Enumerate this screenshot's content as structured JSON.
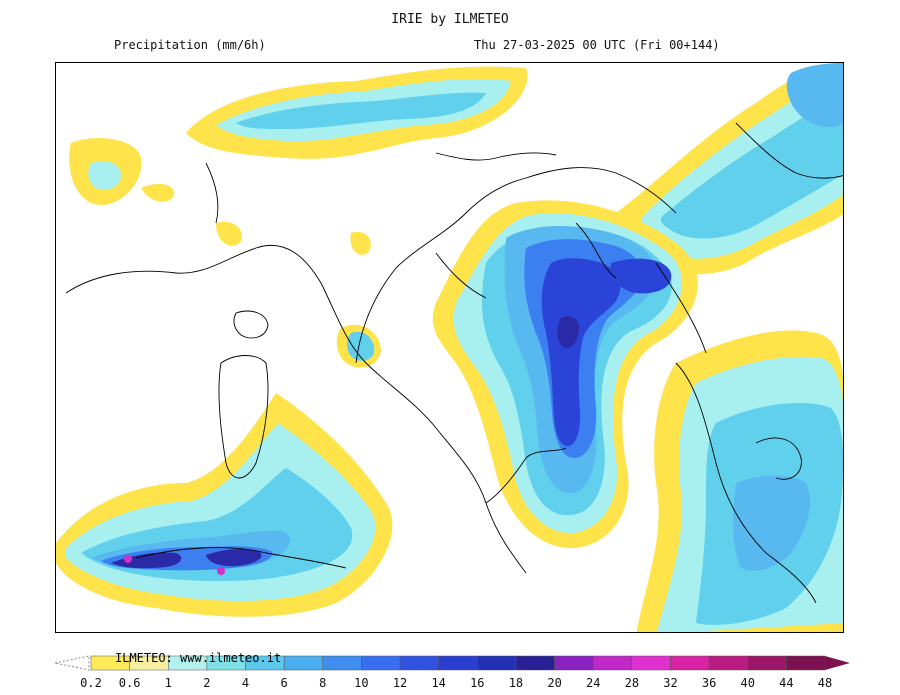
{
  "header": {
    "title": "IRIE by ILMETEO",
    "variable": "Precipitation (mm/6h)",
    "valid_time": "Thu 27-03-2025 00 UTC (Fri 00+144)"
  },
  "colorbar": {
    "credit": "ILMETEO: www.ilmeteo.it",
    "ticks": [
      "0.2",
      "0.6",
      "1",
      "2",
      "4",
      "6",
      "8",
      "10",
      "12",
      "14",
      "16",
      "18",
      "20",
      "24",
      "28",
      "32",
      "36",
      "40",
      "44",
      "48"
    ],
    "colors": [
      "#ffeb59",
      "#f6f0a0",
      "#b4f0ee",
      "#7fe0e8",
      "#5bc8ec",
      "#4aaef0",
      "#3f8ef0",
      "#3a6ef0",
      "#3152e0",
      "#2a3ed0",
      "#2230b4",
      "#2a2096",
      "#8a22c0",
      "#c028c8",
      "#e030d0",
      "#d824a4",
      "#b81c80",
      "#9a1668",
      "#7c1050"
    ]
  },
  "legend_colors": {
    "yellow": "#ffe34a",
    "light_cyan": "#a8f0f0",
    "cyan": "#60d0ec",
    "light_blue": "#58b8f0",
    "blue": "#3c7ff0",
    "dark_blue": "#2b44d8",
    "navy": "#2a2aa8",
    "magenta": "#d030c8"
  }
}
